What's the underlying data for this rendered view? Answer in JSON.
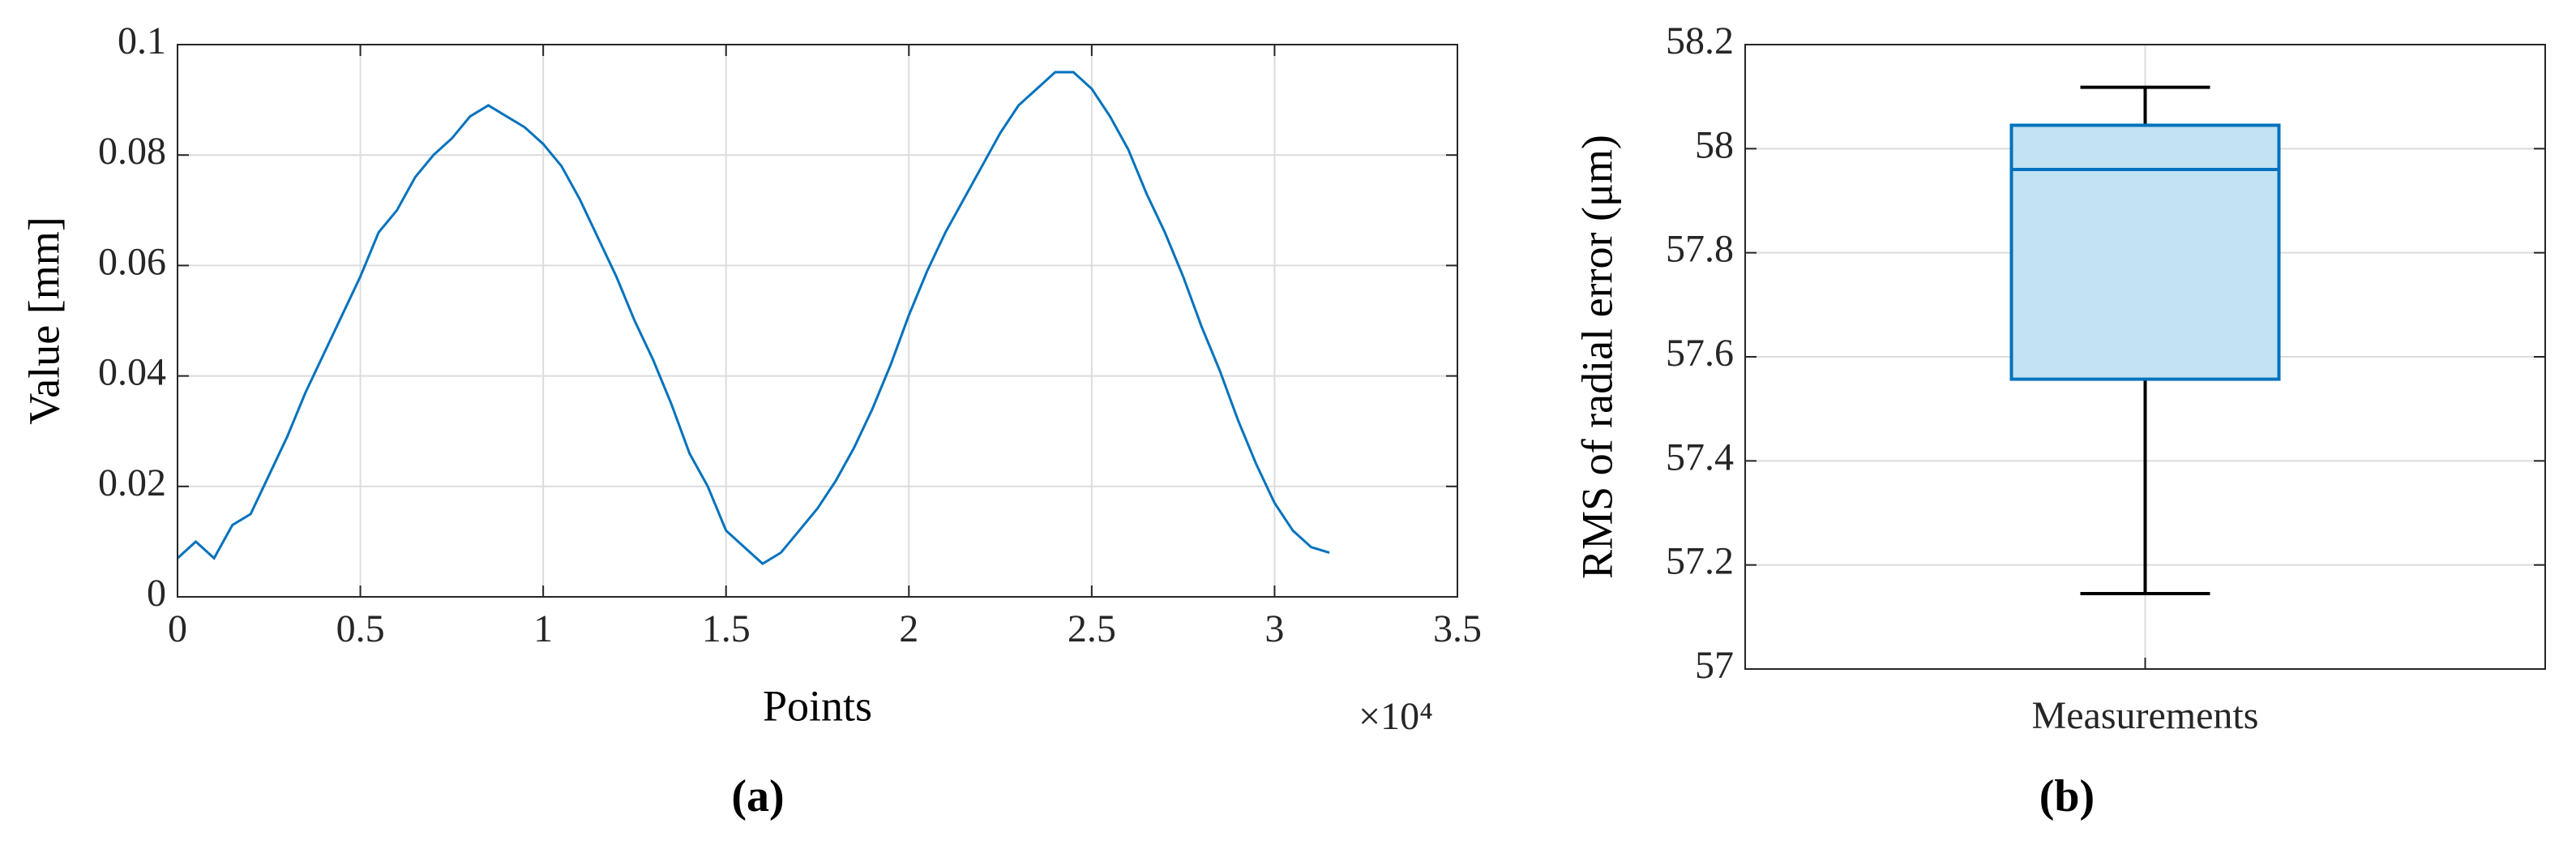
{
  "chart_data": [
    {
      "type": "line",
      "caption": "(a)",
      "x_label": "Points",
      "y_label": "Value [mm]",
      "x_multiplier": "×10⁴",
      "x": [
        0,
        0.05,
        0.1,
        0.15,
        0.2,
        0.25,
        0.3,
        0.35,
        0.4,
        0.45,
        0.5,
        0.55,
        0.6,
        0.65,
        0.7,
        0.75,
        0.8,
        0.85,
        0.9,
        0.95,
        1,
        1.05,
        1.1,
        1.15,
        1.2,
        1.25,
        1.3,
        1.35,
        1.4,
        1.45,
        1.5,
        1.55,
        1.6,
        1.65,
        1.7,
        1.75,
        1.8,
        1.85,
        1.9,
        1.95,
        2,
        2.05,
        2.1,
        2.15,
        2.2,
        2.25,
        2.3,
        2.35,
        2.4,
        2.45,
        2.5,
        2.55,
        2.6,
        2.65,
        2.7,
        2.75,
        2.8,
        2.85,
        2.9,
        2.95,
        3,
        3.05,
        3.1,
        3.15
      ],
      "values": [
        0.007,
        0.01,
        0.007,
        0.013,
        0.015,
        0.022,
        0.029,
        0.037,
        0.044,
        0.051,
        0.058,
        0.066,
        0.07,
        0.076,
        0.08,
        0.083,
        0.087,
        0.089,
        0.087,
        0.085,
        0.082,
        0.078,
        0.072,
        0.065,
        0.058,
        0.05,
        0.043,
        0.035,
        0.026,
        0.02,
        0.012,
        0.009,
        0.006,
        0.008,
        0.012,
        0.016,
        0.021,
        0.027,
        0.034,
        0.042,
        0.051,
        0.059,
        0.066,
        0.072,
        0.078,
        0.084,
        0.089,
        0.092,
        0.095,
        0.095,
        0.092,
        0.087,
        0.081,
        0.073,
        0.066,
        0.058,
        0.049,
        0.041,
        0.032,
        0.024,
        0.017,
        0.012,
        0.009,
        0.008
      ],
      "color": "#0072bd",
      "xlim": [
        0,
        3.5
      ],
      "xticks": [
        0,
        0.5,
        1,
        1.5,
        2,
        2.5,
        3,
        3.5
      ],
      "ylim": [
        0,
        0.1
      ],
      "yticks": [
        0,
        0.02,
        0.04,
        0.06,
        0.08,
        0.1
      ],
      "grid": true
    },
    {
      "type": "box",
      "caption": "(b)",
      "y_label": "RMS of radial error (μm)",
      "categories": [
        "Measurements"
      ],
      "stats": {
        "min": 57.145,
        "q1": 57.557,
        "median": 57.96,
        "q3": 58.045,
        "max": 58.118
      },
      "color": "#0072bd",
      "fill": "#c3e2f2",
      "whisker_color": "#000000",
      "ylim": [
        57,
        58.2
      ],
      "yticks": [
        57,
        57.2,
        57.4,
        57.6,
        57.8,
        58,
        58.2
      ],
      "grid": true
    }
  ]
}
